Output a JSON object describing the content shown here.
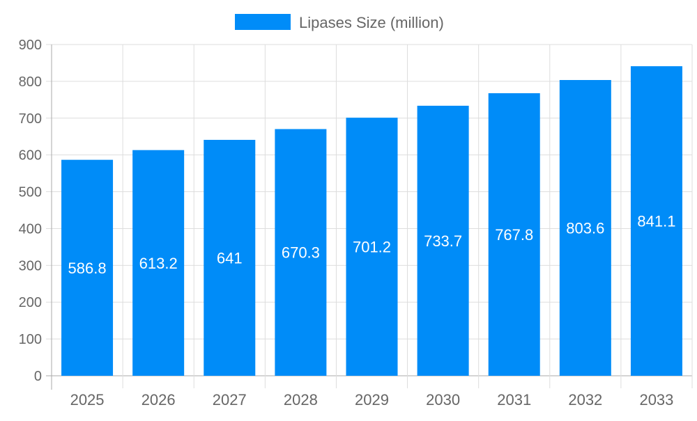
{
  "chart_data": {
    "type": "bar",
    "categories": [
      "2025",
      "2026",
      "2027",
      "2028",
      "2029",
      "2030",
      "2031",
      "2032",
      "2033"
    ],
    "series": [
      {
        "name": "Lipases Size (million)",
        "values": [
          586.8,
          613.2,
          641,
          670.3,
          701.2,
          733.7,
          767.8,
          803.6,
          841.1
        ],
        "color": "#008cf8"
      }
    ],
    "ylim": [
      0,
      900
    ],
    "yticks": [
      0,
      100,
      200,
      300,
      400,
      500,
      600,
      700,
      800,
      900
    ],
    "grid": true,
    "legend": "top-center",
    "data_labels": true,
    "title": "",
    "xlabel": "",
    "ylabel": ""
  }
}
